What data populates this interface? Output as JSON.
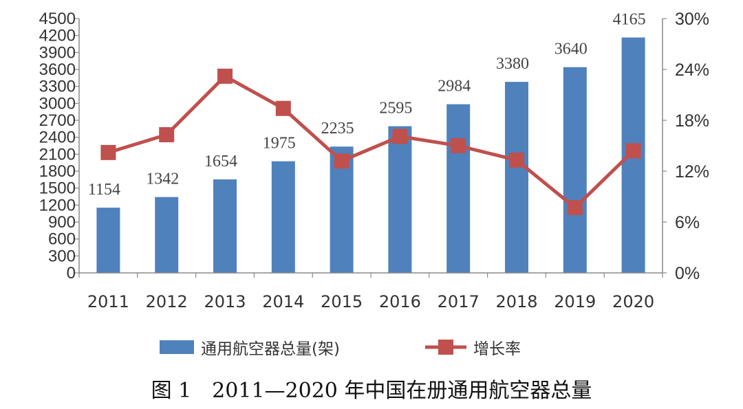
{
  "chart_data": {
    "type": "bar",
    "categories": [
      "2011",
      "2012",
      "2013",
      "2014",
      "2015",
      "2016",
      "2017",
      "2018",
      "2019",
      "2020"
    ],
    "series": [
      {
        "name": "通用航空器总量(架)",
        "type": "bar",
        "axis": "left",
        "color": "#4F81BD",
        "values": [
          1154,
          1342,
          1654,
          1975,
          2235,
          2595,
          2984,
          3380,
          3640,
          4165
        ]
      },
      {
        "name": "增长率",
        "type": "line",
        "axis": "right",
        "color": "#C0504D",
        "values": [
          14.2,
          16.3,
          23.2,
          19.4,
          13.2,
          16.1,
          15.0,
          13.3,
          7.7,
          14.4
        ]
      }
    ],
    "y_left": {
      "ylim": [
        0,
        4500
      ],
      "ticks": [
        0,
        300,
        600,
        900,
        1200,
        1500,
        1800,
        2100,
        2400,
        2700,
        3000,
        3300,
        3600,
        3900,
        4200,
        4500
      ]
    },
    "y_right": {
      "ylim": [
        0,
        30
      ],
      "ticks": [
        0,
        6,
        12,
        18,
        24,
        30
      ],
      "tick_labels": [
        "0%",
        "6%",
        "12%",
        "18%",
        "24%",
        "30%"
      ]
    },
    "data_labels": [
      "1154",
      "1342",
      "1654",
      "1975",
      "2235",
      "2595",
      "2984",
      "3380",
      "3640",
      "4165"
    ],
    "grid": false,
    "legend_position": "bottom"
  },
  "caption": "图 1　2011—2020 年中国在册通用航空器总量"
}
